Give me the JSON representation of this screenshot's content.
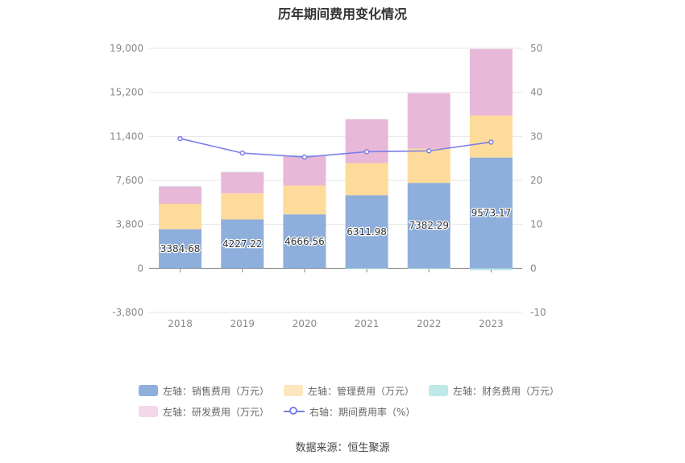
{
  "chart_data": {
    "type": "bar",
    "title": "历年期间费用变化情况",
    "categories": [
      "2018",
      "2019",
      "2020",
      "2021",
      "2022",
      "2023"
    ],
    "left_axis": {
      "ticks": [
        "19,000",
        "15,200",
        "11,400",
        "7,600",
        "3,800",
        "0",
        "-3,800"
      ],
      "min": -3800,
      "max": 19000
    },
    "right_axis": {
      "ticks": [
        "50",
        "40",
        "30",
        "20",
        "10",
        "0",
        "-10"
      ],
      "min": -10,
      "max": 50
    },
    "stacked": true,
    "series": [
      {
        "name": "左轴：销售费用（万元）",
        "axis": "left",
        "color": "#8eaedb",
        "values": [
          3384.68,
          4227.22,
          4666.56,
          6311.98,
          7382.29,
          9573.17
        ],
        "labels": [
          "3384.68",
          "4227.22",
          "4666.56",
          "6311.98",
          "7382.29",
          "9573.17"
        ]
      },
      {
        "name": "左轴：管理费用（万元）",
        "axis": "left",
        "color": "#fddb9a",
        "values": [
          2200,
          2250,
          2480,
          2780,
          2950,
          3620
        ]
      },
      {
        "name": "左轴：财务费用（万元）",
        "axis": "left",
        "color": "#b8e6e6",
        "values": [
          5,
          5,
          60,
          -60,
          -50,
          -150
        ]
      },
      {
        "name": "左轴：研发费用（万元）",
        "axis": "left",
        "color": "#e8b8d8",
        "values": [
          1500,
          1850,
          2550,
          3780,
          4800,
          5750
        ]
      },
      {
        "name": "右轴：期间费用率（%）",
        "axis": "right",
        "type": "line",
        "color": "#7b7fe8",
        "values": [
          29.5,
          26.2,
          25.3,
          26.5,
          26.7,
          28.7
        ]
      }
    ],
    "grid": true,
    "legend_position": "bottom"
  },
  "source": "数据来源：恒生聚源"
}
